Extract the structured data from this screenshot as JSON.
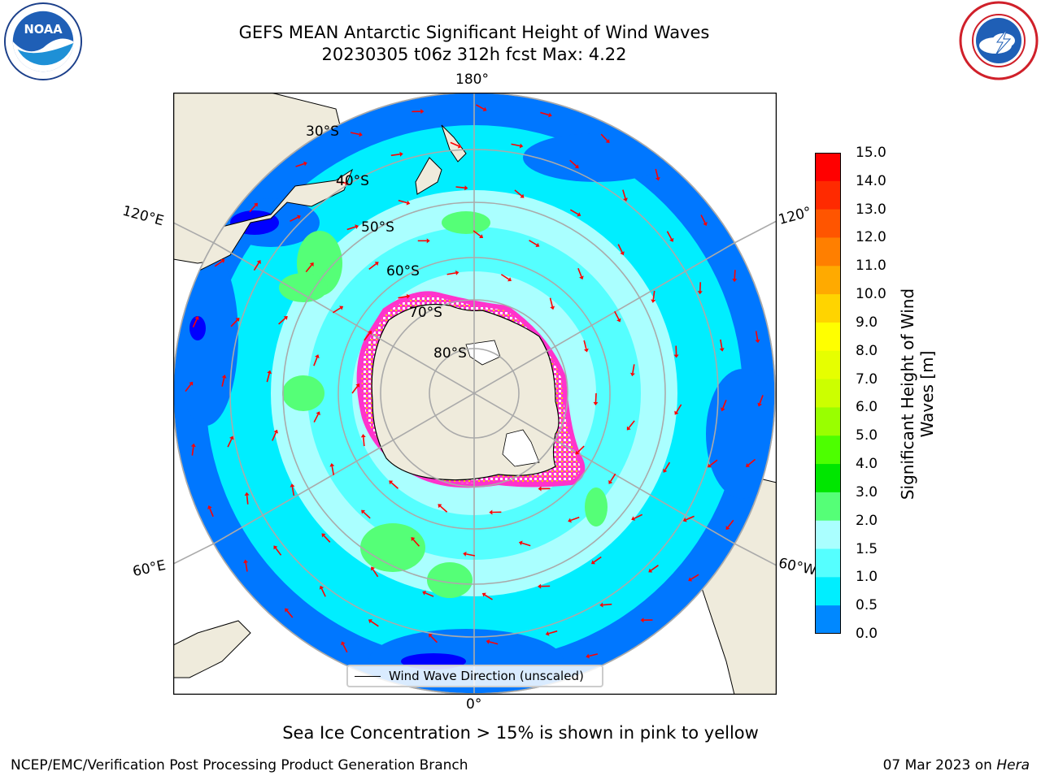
{
  "title_line1": "GEFS MEAN Antarctic Significant Height of Wind Waves",
  "title_line2": "20230305 t06z 312h fcst   Max: 4.22",
  "labels": {
    "lon_top": "180°",
    "lon_bottom": "0°",
    "lon_left_upper": "120°E",
    "lon_left_lower": "60°E",
    "lon_right_upper": "120°",
    "lon_right_lower": "60°W",
    "lat_30": "30°S",
    "lat_40": "40°S",
    "lat_50": "50°S",
    "lat_60": "60°S",
    "lat_70": "70°S",
    "lat_80": "80°S"
  },
  "legend_label": "Wind Wave Direction (unscaled)",
  "colorbar": {
    "label": "Significant Height of Wind Waves [m]",
    "label_line1": "Significant Height of Wind",
    "label_line2": "Waves [m]",
    "ticks": [
      "15.0",
      "14.0",
      "13.0",
      "12.0",
      "11.0",
      "10.0",
      "9.0",
      "8.0",
      "7.0",
      "6.0",
      "5.0",
      "4.0",
      "3.0",
      "2.0",
      "1.5",
      "1.0",
      "0.5",
      "0.0"
    ],
    "colors": [
      "#ff0000",
      "#ff2a00",
      "#ff5500",
      "#ff7f00",
      "#ffaa00",
      "#ffd400",
      "#ffff00",
      "#e6ff00",
      "#ccff00",
      "#99ff00",
      "#4dff00",
      "#00e600",
      "#55ff77",
      "#aaffff",
      "#55ffff",
      "#00eeff",
      "#0088ff",
      "#0000ff"
    ]
  },
  "note": "Sea Ice Concentration > 15% is shown in pink to yellow",
  "footer_left": "NCEP/EMC/Verification Post Processing Product Generation Branch",
  "footer_date": "07 Mar 2023 on ",
  "footer_host": "Hera",
  "logos": {
    "noaa_text": "NOAA",
    "nws_text": "NATIONAL WEATHER SERVICE"
  }
}
